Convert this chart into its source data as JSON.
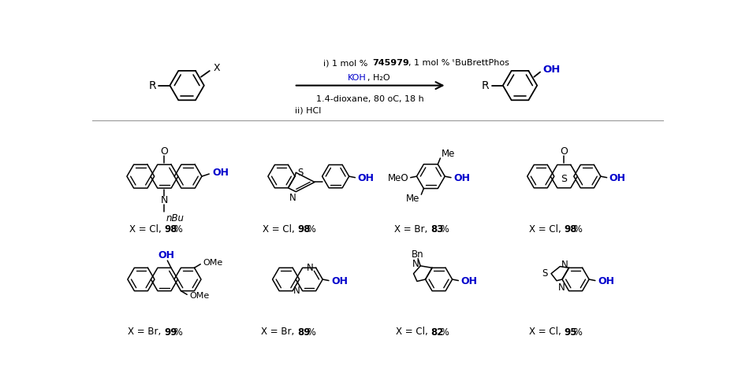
{
  "bg_color": "#ffffff",
  "blue_color": "#0000CC",
  "black_color": "#000000",
  "fig_width": 9.36,
  "fig_height": 4.88,
  "dpi": 100,
  "row1_labels": [
    [
      "X = Cl, ",
      "98",
      " %"
    ],
    [
      "X = Cl, ",
      "98",
      " %"
    ],
    [
      "X = Br, ",
      "83",
      " %"
    ],
    [
      "X = Cl, ",
      "98",
      " %"
    ]
  ],
  "row2_labels": [
    [
      "X = Br, ",
      "99",
      " %"
    ],
    [
      "X = Br, ",
      "89",
      " %"
    ],
    [
      "X = Cl, ",
      "82",
      " %"
    ],
    [
      "X = Cl, ",
      "95",
      " %"
    ]
  ]
}
